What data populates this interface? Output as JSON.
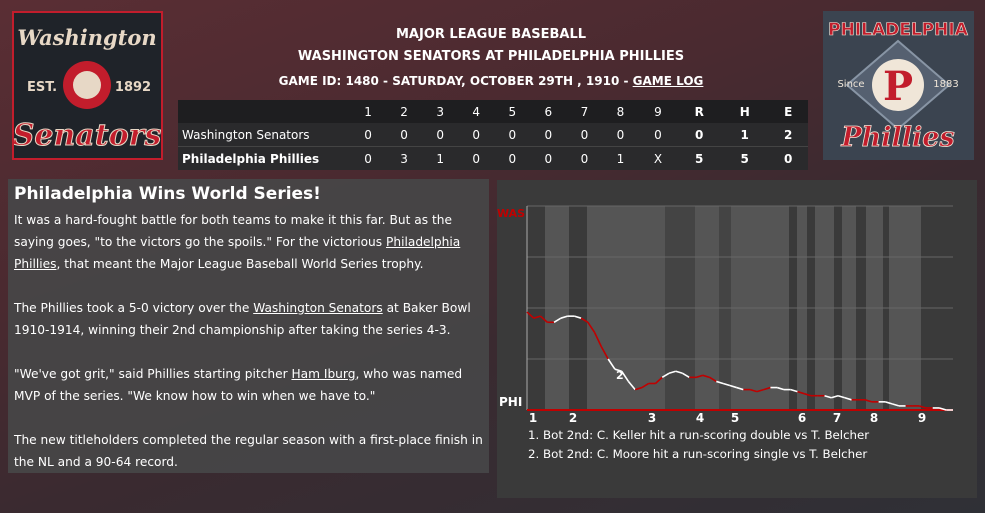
{
  "header": {
    "league": "MAJOR LEAGUE BASEBALL",
    "matchup": "WASHINGTON SENATORS AT PHILADELPHIA PHILLIES",
    "game_info": "GAME ID: 1480 - SATURDAY, OCTOBER 29TH , 1910 - ",
    "game_log_link": "GAME LOG"
  },
  "logos": {
    "away": {
      "line1": "Washington",
      "est": "EST.",
      "year": "1892",
      "line2": "Senators"
    },
    "home": {
      "line1": "PHILADELPHIA",
      "since": "Since",
      "year": "1883",
      "letter": "P",
      "line2": "Phillies"
    }
  },
  "linescore": {
    "columns": [
      "1",
      "2",
      "3",
      "4",
      "5",
      "6",
      "7",
      "8",
      "9",
      "R",
      "H",
      "E"
    ],
    "rows": [
      {
        "team": "Washington Senators",
        "values": [
          "0",
          "0",
          "0",
          "0",
          "0",
          "0",
          "0",
          "0",
          "0",
          "0",
          "1",
          "2"
        ]
      },
      {
        "team": "Philadelphia Phillies",
        "values": [
          "0",
          "3",
          "1",
          "0",
          "0",
          "0",
          "0",
          "1",
          "X",
          "5",
          "5",
          "0"
        ]
      }
    ]
  },
  "article": {
    "headline": "Philadelphia Wins World Series!",
    "p1_pre": "It was a hard-fought battle for both teams to make it this far. But as the saying goes, \"to the victors go the spoils.\" For the victorious ",
    "p1_link": "Philadelphia Phillies",
    "p1_post": ", that meant the Major League Baseball World Series trophy.",
    "p2_pre": "The Phillies took a 5-0 victory over the ",
    "p2_link": "Washington Senators",
    "p2_post": " at Baker Bowl 1910-1914, winning their 2nd championship after taking the series 4-3.",
    "p3_pre": "\"We've got grit,\" said Phillies starting pitcher ",
    "p3_link": "Ham Iburg",
    "p3_post": ", who was named MVP of the series. \"We know how to win when we have to.\"",
    "p4": "The new titleholders completed the regular season with a first-place finish in the NL and a 90-64 record."
  },
  "chart_data": {
    "type": "line",
    "top_label": "WAS",
    "bottom_label": "PHI",
    "x_inning_labels": [
      "1",
      "2",
      "3",
      "4",
      "5",
      "6",
      "7",
      "8",
      "9"
    ],
    "marker_label": "2",
    "ylim": [
      0,
      1
    ],
    "series": [
      {
        "values": [
          0.48,
          0.45,
          0.46,
          0.43,
          0.43,
          0.45,
          0.46,
          0.46,
          0.45,
          0.43,
          0.38,
          0.31,
          0.25,
          0.2,
          0.19,
          0.14,
          0.1,
          0.11,
          0.13,
          0.13,
          0.16,
          0.18,
          0.19,
          0.18,
          0.16,
          0.16,
          0.17,
          0.16,
          0.14,
          0.13,
          0.12,
          0.11,
          0.1,
          0.1,
          0.09,
          0.1,
          0.11,
          0.11,
          0.1,
          0.1,
          0.09,
          0.08,
          0.07,
          0.07,
          0.07,
          0.06,
          0.07,
          0.06,
          0.05,
          0.05,
          0.05,
          0.04,
          0.04,
          0.04,
          0.03,
          0.02,
          0.02,
          0.02,
          0.02,
          0.01,
          0.01,
          0.01,
          0.0,
          0.0
        ]
      }
    ],
    "colors": {
      "red": "#c00000",
      "white": "#ffffff"
    },
    "plays": [
      "1. Bot 2nd: C. Keller hit a run-scoring double vs T. Belcher",
      "2. Bot 2nd: C. Moore hit a run-scoring single vs T. Belcher"
    ]
  }
}
